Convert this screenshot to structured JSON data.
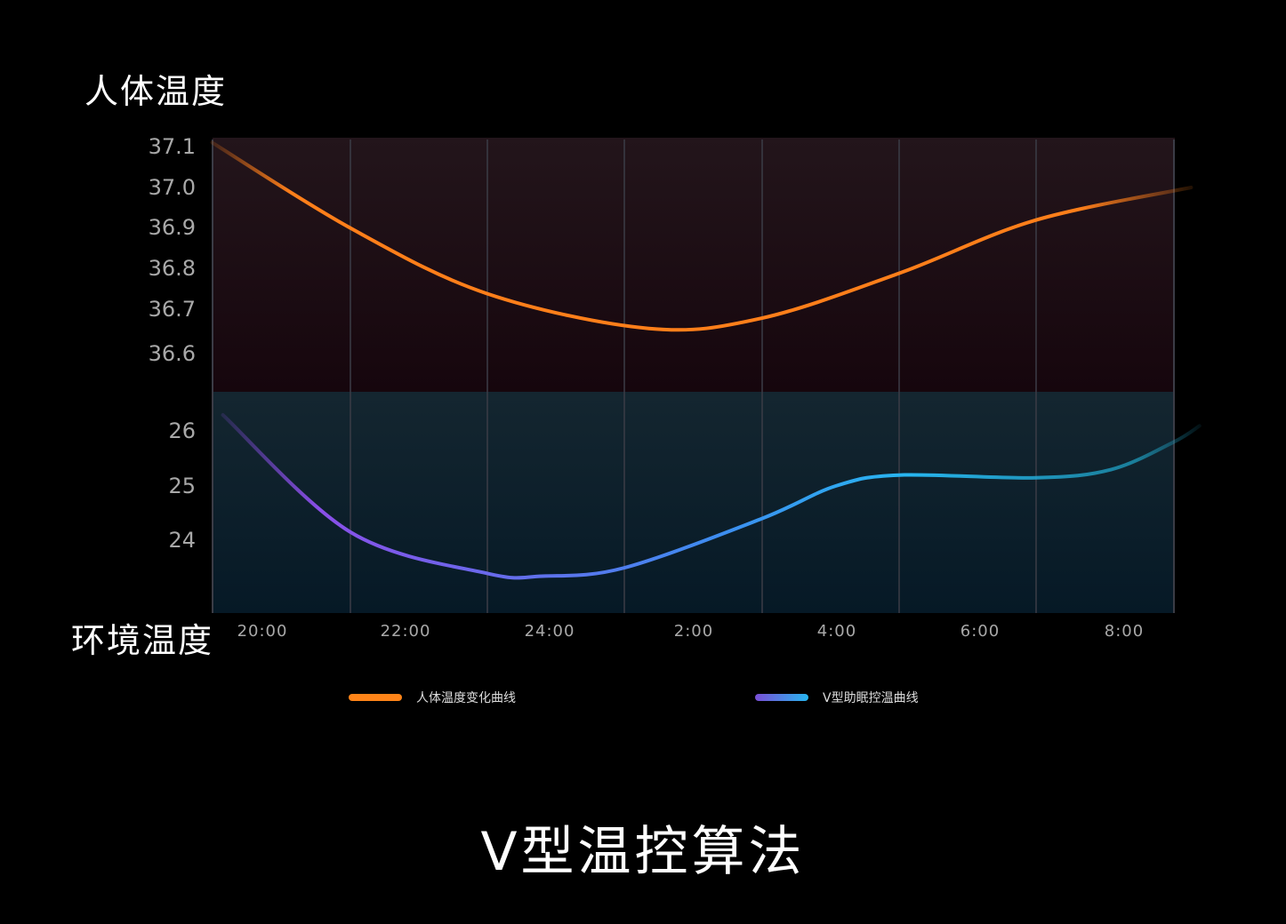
{
  "chart_data": [
    {
      "type": "line",
      "ylabel": "人体温度",
      "yticks": [
        "37.1",
        "37.0",
        "36.9",
        "36.8",
        "36.7",
        "36.6"
      ],
      "ylim": [
        36.5,
        37.12
      ],
      "series": [
        {
          "name": "人体温度变化曲线",
          "color": "#ff7f1a",
          "points": [
            {
              "x": "19:18",
              "y": 37.11
            },
            {
              "x": "21:14",
              "y": 36.9
            },
            {
              "x": "23:08",
              "y": 36.74
            },
            {
              "x": "01:23",
              "y": 36.655
            },
            {
              "x": "02:57",
              "y": 36.68
            },
            {
              "x": "04:52",
              "y": 36.79
            },
            {
              "x": "06:46",
              "y": 36.92
            },
            {
              "x": "08:56",
              "y": 37.0
            }
          ]
        }
      ]
    },
    {
      "type": "line",
      "ylabel": "环境温度",
      "yticks": [
        "26",
        "25",
        "24"
      ],
      "ylim": [
        22.8,
        26.7
      ],
      "xticks": [
        "20:00",
        "22:00",
        "24:00",
        "2:00",
        "4:00",
        "6:00",
        "8:00"
      ],
      "series": [
        {
          "name": "V型助眠控温曲线",
          "colors": [
            "#8a4fe8",
            "#27b6f0"
          ],
          "points": [
            {
              "x": "19:27",
              "y": 26.3
            },
            {
              "x": "21:14",
              "y": 24.15
            },
            {
              "x": "23:08",
              "y": 23.4
            },
            {
              "x": "23:54",
              "y": 23.35
            },
            {
              "x": "01:02",
              "y": 23.5
            },
            {
              "x": "02:57",
              "y": 24.4
            },
            {
              "x": "03:59",
              "y": 25.0
            },
            {
              "x": "04:52",
              "y": 25.2
            },
            {
              "x": "06:46",
              "y": 25.15
            },
            {
              "x": "07:49",
              "y": 25.3
            },
            {
              "x": "08:41",
              "y": 25.8
            },
            {
              "x": "09:03",
              "y": 26.1
            }
          ]
        }
      ]
    }
  ],
  "title": "V型温控算法",
  "legend": [
    {
      "label": "人体温度变化曲线",
      "color": "#ff7f1a"
    },
    {
      "label": "V型助眠控温曲线",
      "colors": [
        "#7a4fd6",
        "#27b6f0"
      ]
    }
  ],
  "grid": true
}
